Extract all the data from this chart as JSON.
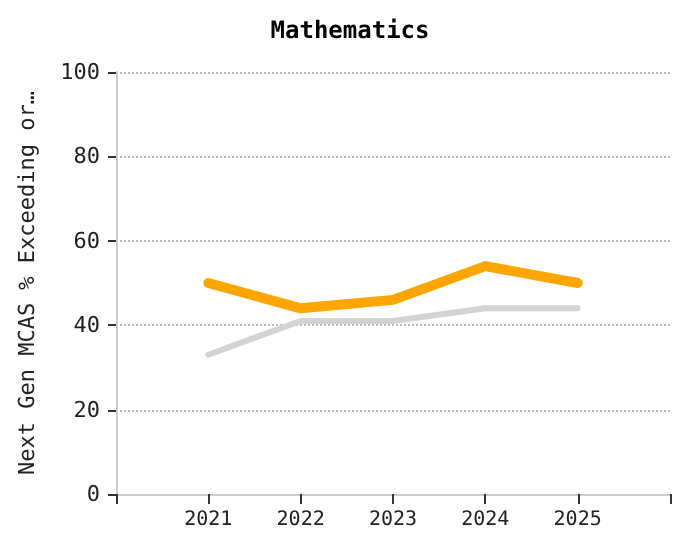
{
  "chart_data": {
    "type": "line",
    "title": "Mathematics",
    "ylabel": "Next Gen MCAS % Exceeding or…",
    "categories": [
      "2021",
      "2022",
      "2023",
      "2024",
      "2025"
    ],
    "series": [
      {
        "color": "#d3d3d3",
        "values": [
          33,
          41,
          41,
          44,
          44
        ]
      },
      {
        "color": "#ffa500",
        "values": [
          50,
          44,
          46,
          54,
          50
        ]
      }
    ],
    "ylim": [
      0,
      100
    ],
    "yticks": [
      0,
      20,
      40,
      60,
      80,
      100
    ],
    "grid": "y",
    "marker": "none",
    "line_style": "solid"
  }
}
